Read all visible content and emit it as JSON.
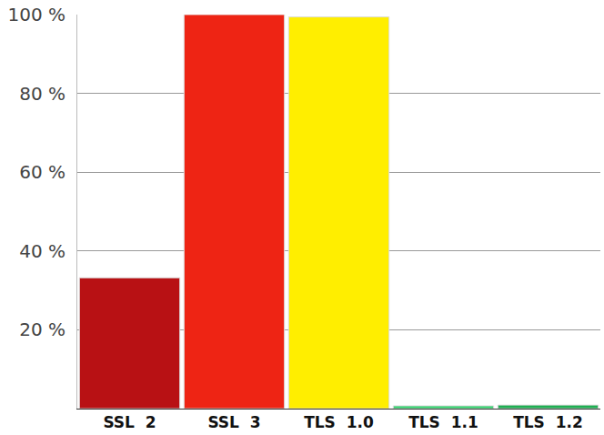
{
  "chart_data": {
    "type": "bar",
    "categories": [
      "SSL  2",
      "SSL  3",
      "TLS  1.0",
      "TLS  1.1",
      "TLS  1.2"
    ],
    "values": [
      33.2,
      100,
      99.4,
      0.7,
      0.9
    ],
    "colors": [
      "#b81114",
      "#ee2414",
      "#ffee00",
      "#2ed16a",
      "#1fae52"
    ],
    "ylim": [
      0,
      100
    ],
    "yticks": [
      {
        "value": 20,
        "label": "20 %"
      },
      {
        "value": 40,
        "label": "40 %"
      },
      {
        "value": 60,
        "label": "60 %"
      },
      {
        "value": 80,
        "label": "80 %"
      },
      {
        "value": 100,
        "label": "100 %"
      }
    ],
    "grid": true
  }
}
